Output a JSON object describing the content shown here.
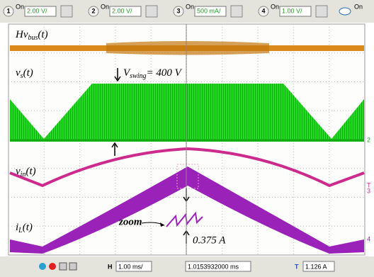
{
  "toolbar": {
    "channels": [
      {
        "number": "1",
        "state": "On",
        "scale": "2.00 V/"
      },
      {
        "number": "2",
        "state": "On",
        "scale": "2.00 V/"
      },
      {
        "number": "3",
        "state": "On",
        "scale": "500 mA/"
      },
      {
        "number": "4",
        "state": "On",
        "scale": "1.00 V/"
      }
    ],
    "display": "On"
  },
  "traces": [
    {
      "label": {
        "main": "Hv",
        "sub": "bus",
        "tail": "(t)"
      }
    },
    {
      "label": {
        "main": "v",
        "sub": "s",
        "tail": "(t)"
      }
    },
    {
      "label": {
        "main": "v",
        "sub": "in",
        "tail": "(t)"
      }
    },
    {
      "label": {
        "main": "i",
        "sub": "L",
        "tail": "(t)"
      }
    }
  ],
  "annotations": {
    "swing": {
      "main": "V",
      "sub": "swing",
      "tail": "= 400 V"
    },
    "zoom": "zoom",
    "ripple": "0.375 A"
  },
  "markers": [
    "2",
    "T",
    "3",
    "4"
  ],
  "statusbar": {
    "h_label": "H",
    "timebase": "1.00 ms/",
    "position": "1.0153932000 ms",
    "t_label": "T",
    "trigger": "1.126 A"
  }
}
